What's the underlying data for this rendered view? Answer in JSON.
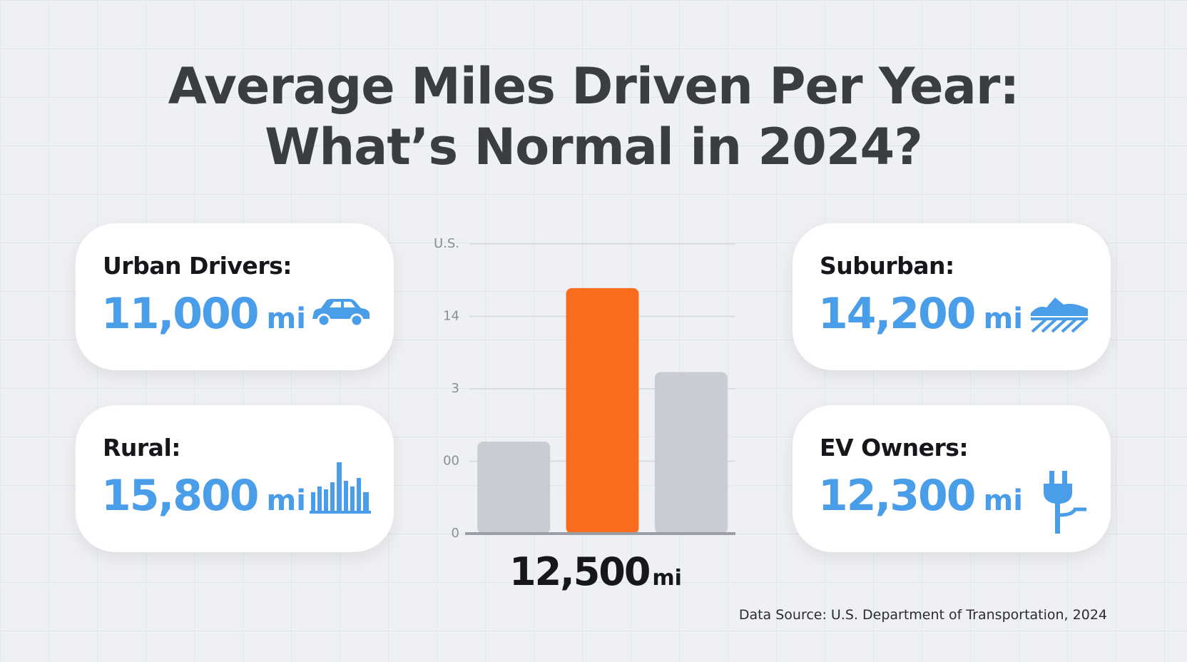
{
  "title": [
    "Average Miles Driven Per Year:",
    "What’s Normal in 2024?"
  ],
  "cards": [
    {
      "label": "Urban Drivers:",
      "value": "11,000",
      "unit": "mi"
    },
    {
      "label": "Rural:",
      "value": "15,800",
      "unit": "mi"
    },
    {
      "label": "Suburban:",
      "value": "14,200",
      "unit": "mi"
    },
    {
      "label": "EV Owners:",
      "value": "12,300",
      "unit": "mi"
    }
  ],
  "chart_data": {
    "type": "bar",
    "categories": [
      null,
      null,
      null
    ],
    "values": [
      1.27,
      3.39,
      2.23
    ],
    "colors": [
      "#c9ccd3",
      "#fa6d1f",
      "#c9ccd3"
    ],
    "ylim": [
      0,
      4
    ],
    "yticks": [
      0,
      {
        "value": 1,
        "label": "00"
      },
      {
        "value": 2,
        "label": "3"
      },
      {
        "value": 3,
        "label": "14"
      },
      {
        "value": 4,
        "label": "U.S."
      }
    ],
    "grid": true
  },
  "national": {
    "value": "12,500",
    "unit": "mi"
  },
  "source": "Data Source: U.S. Department of Transportation, 2024"
}
